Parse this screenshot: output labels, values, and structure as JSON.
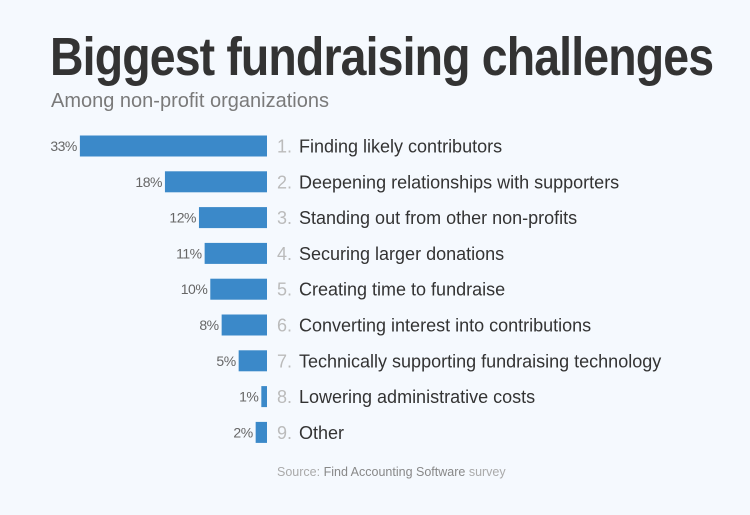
{
  "chart_data": {
    "type": "bar",
    "orientation": "horizontal",
    "title": "Biggest fundraising challenges",
    "subtitle": "Among non-profit organizations",
    "categories": [
      "Finding likely contributors",
      "Deepening relationships with supporters",
      "Standing out from other non-profits",
      "Securing larger donations",
      "Creating time to fundraise",
      "Converting interest into contributions",
      "Technically supporting fundraising technology",
      "Lowering administrative costs",
      "Other"
    ],
    "values": [
      33,
      18,
      12,
      11,
      10,
      8,
      5,
      1,
      2
    ],
    "value_labels": [
      "33%",
      "18%",
      "12%",
      "11%",
      "10%",
      "8%",
      "5%",
      "1%",
      "2%"
    ],
    "numbers": [
      "1.",
      "2.",
      "3.",
      "4.",
      "5.",
      "6.",
      "7.",
      "8.",
      "9."
    ],
    "unit": "%",
    "grid": false,
    "bar_color": "#3b89c9",
    "source": {
      "prefix": "Source:",
      "name": "Find Accounting Software",
      "suffix": "survey"
    }
  }
}
